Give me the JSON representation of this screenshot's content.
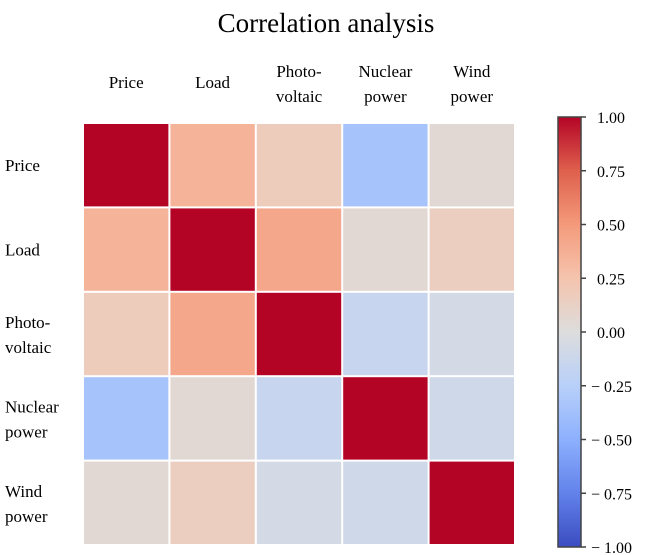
{
  "chart_data": {
    "type": "heatmap",
    "title": "Correlation analysis",
    "xlabel": "",
    "ylabel": "",
    "variables": [
      [
        "Price"
      ],
      [
        "Load"
      ],
      [
        "Photo-",
        "voltaic"
      ],
      [
        "Nuclear",
        "power"
      ],
      [
        "Wind",
        "power"
      ]
    ],
    "matrix": [
      [
        1.0,
        0.35,
        0.17,
        -0.35,
        0.05
      ],
      [
        0.35,
        1.0,
        0.42,
        0.05,
        0.15
      ],
      [
        0.17,
        0.42,
        1.0,
        -0.15,
        -0.07
      ],
      [
        -0.35,
        0.05,
        -0.15,
        1.0,
        -0.1
      ],
      [
        0.05,
        0.15,
        -0.07,
        -0.1,
        1.0
      ]
    ],
    "colormap": "coolwarm",
    "colorbar": {
      "range": [
        -1.0,
        1.0
      ],
      "ticks": [
        1.0,
        0.75,
        0.5,
        0.25,
        0.0,
        -0.25,
        -0.5,
        -0.75,
        -1.0
      ],
      "tick_labels": [
        "1.00",
        "0.75",
        "0.50",
        "0.25",
        "0.00",
        "− 0.25",
        "− 0.50",
        "− 0.75",
        "− 1.00"
      ],
      "placement": "right"
    },
    "colors": {
      "low": "#3b4cc0",
      "mid": "#dddddd",
      "high": "#b40426"
    }
  }
}
